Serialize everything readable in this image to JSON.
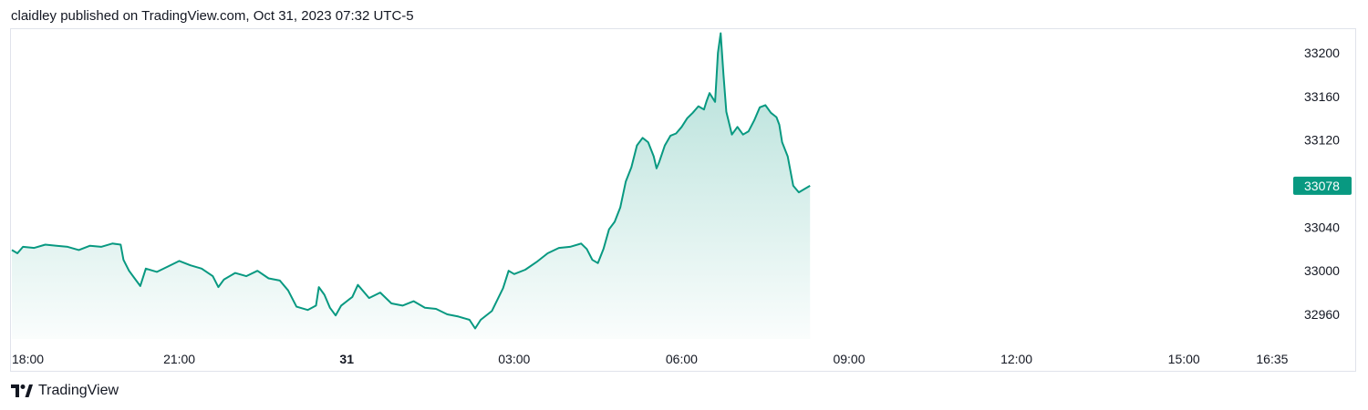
{
  "header": {
    "text": "claidley published on TradingView.com, Oct 31, 2023 07:32 UTC-5"
  },
  "footer": {
    "brand": "TradingView",
    "logo_icon": "tradingview-logo-icon"
  },
  "colors": {
    "line": "#089981",
    "area_top": "#089981",
    "label_bg": "#089981",
    "border": "#e0e3eb",
    "text": "#131722"
  },
  "chart_data": {
    "type": "area",
    "title": "",
    "xlabel": "",
    "ylabel": "",
    "x_ticks": [
      {
        "label": "18:00",
        "hour": 0,
        "bold": false
      },
      {
        "label": "21:00",
        "hour": 3,
        "bold": false
      },
      {
        "label": "31",
        "hour": 6,
        "bold": true
      },
      {
        "label": "03:00",
        "hour": 9,
        "bold": false
      },
      {
        "label": "06:00",
        "hour": 12,
        "bold": false
      },
      {
        "label": "09:00",
        "hour": 15,
        "bold": false
      },
      {
        "label": "12:00",
        "hour": 18,
        "bold": false
      },
      {
        "label": "15:00",
        "hour": 21,
        "bold": false
      },
      {
        "label": "16:35",
        "hour": 22.58,
        "bold": false
      }
    ],
    "y_ticks": [
      32960,
      33000,
      33040,
      33120,
      33160,
      33200
    ],
    "ylim": [
      32940,
      33220
    ],
    "xlim_hours": [
      0,
      22.58
    ],
    "last_value": 33078,
    "grid": false,
    "series": [
      {
        "points": [
          [
            0.0,
            33019
          ],
          [
            0.1,
            33016
          ],
          [
            0.2,
            33022
          ],
          [
            0.4,
            33021
          ],
          [
            0.6,
            33024
          ],
          [
            0.8,
            33023
          ],
          [
            1.0,
            33022
          ],
          [
            1.2,
            33019
          ],
          [
            1.4,
            33023
          ],
          [
            1.6,
            33022
          ],
          [
            1.8,
            33025
          ],
          [
            1.95,
            33024
          ],
          [
            2.0,
            33010
          ],
          [
            2.1,
            33000
          ],
          [
            2.2,
            32993
          ],
          [
            2.3,
            32986
          ],
          [
            2.4,
            33002
          ],
          [
            2.6,
            32999
          ],
          [
            2.8,
            33004
          ],
          [
            3.0,
            33009
          ],
          [
            3.2,
            33005
          ],
          [
            3.4,
            33002
          ],
          [
            3.6,
            32995
          ],
          [
            3.7,
            32985
          ],
          [
            3.8,
            32992
          ],
          [
            4.0,
            32998
          ],
          [
            4.2,
            32995
          ],
          [
            4.4,
            33000
          ],
          [
            4.6,
            32993
          ],
          [
            4.8,
            32991
          ],
          [
            4.95,
            32982
          ],
          [
            5.1,
            32967
          ],
          [
            5.3,
            32964
          ],
          [
            5.45,
            32968
          ],
          [
            5.5,
            32985
          ],
          [
            5.6,
            32978
          ],
          [
            5.7,
            32966
          ],
          [
            5.8,
            32959
          ],
          [
            5.9,
            32968
          ],
          [
            6.1,
            32976
          ],
          [
            6.2,
            32987
          ],
          [
            6.4,
            32975
          ],
          [
            6.6,
            32980
          ],
          [
            6.8,
            32970
          ],
          [
            7.0,
            32968
          ],
          [
            7.2,
            32972
          ],
          [
            7.4,
            32966
          ],
          [
            7.6,
            32965
          ],
          [
            7.8,
            32960
          ],
          [
            8.0,
            32958
          ],
          [
            8.2,
            32955
          ],
          [
            8.3,
            32947
          ],
          [
            8.4,
            32955
          ],
          [
            8.6,
            32963
          ],
          [
            8.8,
            32984
          ],
          [
            8.9,
            33000
          ],
          [
            9.0,
            32997
          ],
          [
            9.2,
            33001
          ],
          [
            9.4,
            33008
          ],
          [
            9.6,
            33016
          ],
          [
            9.8,
            33021
          ],
          [
            10.0,
            33022
          ],
          [
            10.2,
            33025
          ],
          [
            10.3,
            33020
          ],
          [
            10.4,
            33010
          ],
          [
            10.5,
            33007
          ],
          [
            10.6,
            33020
          ],
          [
            10.7,
            33038
          ],
          [
            10.8,
            33045
          ],
          [
            10.9,
            33058
          ],
          [
            11.0,
            33082
          ],
          [
            11.1,
            33095
          ],
          [
            11.2,
            33115
          ],
          [
            11.3,
            33122
          ],
          [
            11.4,
            33118
          ],
          [
            11.5,
            33105
          ],
          [
            11.55,
            33094
          ],
          [
            11.6,
            33100
          ],
          [
            11.7,
            33115
          ],
          [
            11.8,
            33124
          ],
          [
            11.9,
            33126
          ],
          [
            12.0,
            33132
          ],
          [
            12.1,
            33140
          ],
          [
            12.2,
            33145
          ],
          [
            12.3,
            33151
          ],
          [
            12.4,
            33148
          ],
          [
            12.45,
            33156
          ],
          [
            12.5,
            33163
          ],
          [
            12.6,
            33155
          ],
          [
            12.65,
            33200
          ],
          [
            12.7,
            33218
          ],
          [
            12.75,
            33180
          ],
          [
            12.8,
            33146
          ],
          [
            12.9,
            33125
          ],
          [
            13.0,
            33132
          ],
          [
            13.1,
            33125
          ],
          [
            13.2,
            33128
          ],
          [
            13.3,
            33138
          ],
          [
            13.4,
            33150
          ],
          [
            13.5,
            33152
          ],
          [
            13.6,
            33145
          ],
          [
            13.7,
            33141
          ],
          [
            13.75,
            33134
          ],
          [
            13.8,
            33118
          ],
          [
            13.9,
            33105
          ],
          [
            14.0,
            33078
          ],
          [
            14.1,
            33072
          ],
          [
            14.2,
            33075
          ],
          [
            14.3,
            33078
          ]
        ]
      }
    ]
  }
}
